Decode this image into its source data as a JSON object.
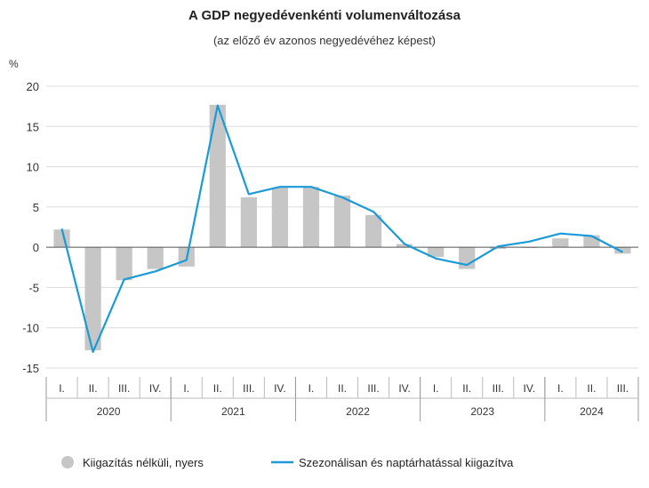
{
  "chart_data": {
    "type": "bar",
    "title": "A GDP negyedévenkénti volumenváltozása",
    "subtitle": "(az előző év azonos negyedévéhez képest)",
    "ylabel": "%",
    "ylim": [
      -15,
      20
    ],
    "yticks": [
      -15,
      -10,
      -5,
      0,
      5,
      10,
      15,
      20
    ],
    "grid": true,
    "legend_position": "bottom",
    "categories": [
      "I.",
      "II.",
      "III.",
      "IV.",
      "I.",
      "II.",
      "III.",
      "IV.",
      "I.",
      "II.",
      "III.",
      "IV.",
      "I.",
      "II.",
      "III.",
      "IV.",
      "I.",
      "II.",
      "III."
    ],
    "years": [
      {
        "label": "2020",
        "count": 4
      },
      {
        "label": "2021",
        "count": 4
      },
      {
        "label": "2022",
        "count": 4
      },
      {
        "label": "2023",
        "count": 4
      },
      {
        "label": "2024",
        "count": 3
      }
    ],
    "series": [
      {
        "name": "Kiigazítás nélküli, nyers",
        "type": "bar",
        "color": "#c6c6c6",
        "values": [
          2.2,
          -12.8,
          -4.1,
          -2.7,
          -2.4,
          17.7,
          6.2,
          7.4,
          7.5,
          6.4,
          4.0,
          0.4,
          -1.2,
          -2.7,
          -0.2,
          0.0,
          1.1,
          1.5,
          -0.8
        ]
      },
      {
        "name": "Szezonálisan és naptárhatással kiigazítva",
        "type": "line",
        "color": "#1a9bd7",
        "values": [
          2.3,
          -13.0,
          -4.0,
          -3.0,
          -1.6,
          17.6,
          6.6,
          7.5,
          7.5,
          6.2,
          4.4,
          0.4,
          -1.4,
          -2.2,
          0.1,
          0.7,
          1.7,
          1.4,
          -0.6
        ]
      }
    ]
  }
}
